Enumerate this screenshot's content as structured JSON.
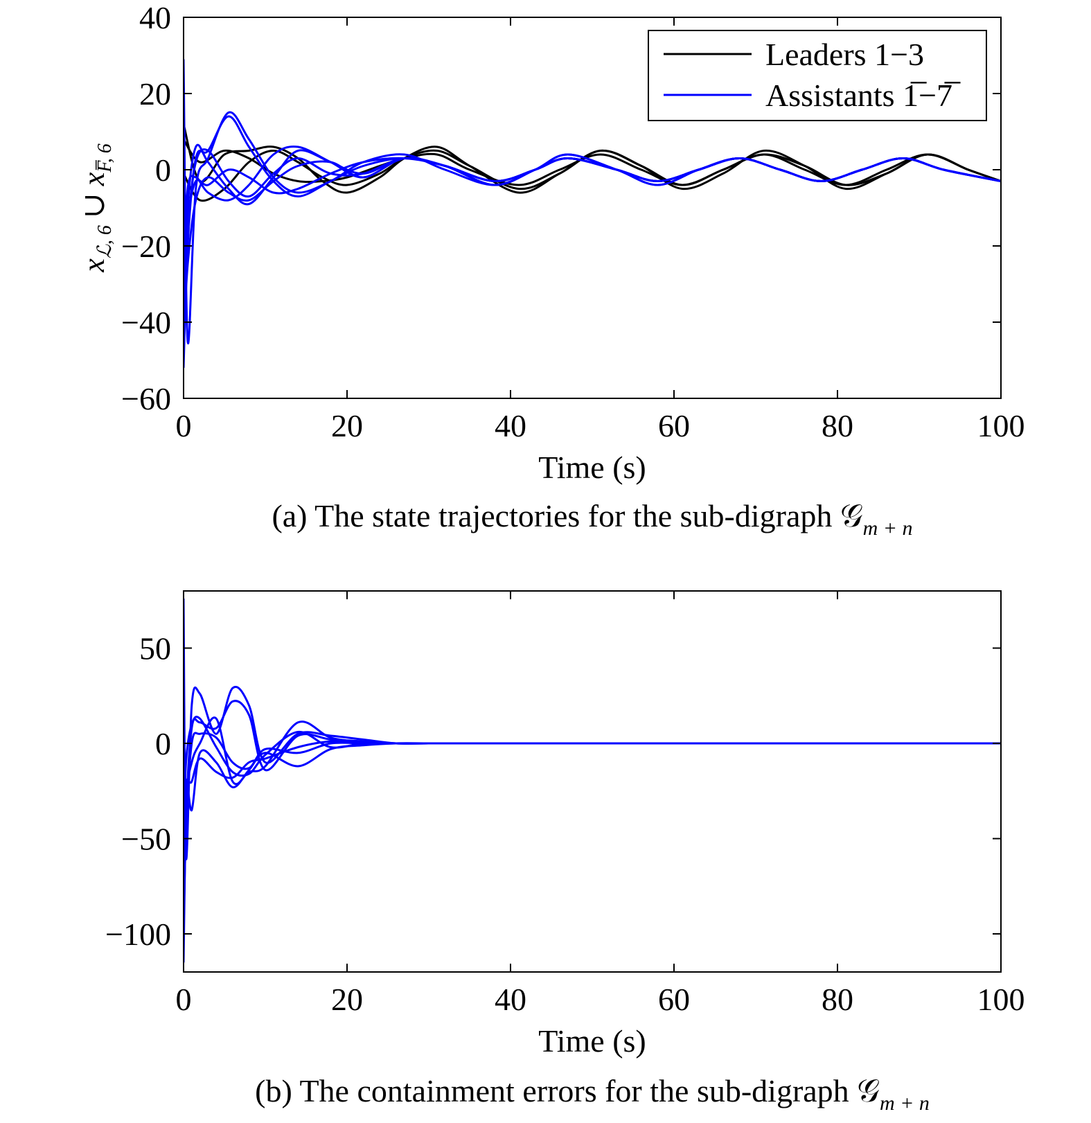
{
  "colors": {
    "leader": "#000000",
    "assistant": "#0000ff",
    "axis": "#000000",
    "background": "#ffffff"
  },
  "chart_data": [
    {
      "id": "a",
      "type": "line",
      "caption": "(a) The state trajectories for the sub-digraph 𝒢",
      "caption_sub": "m + n",
      "xlabel": "Time (s)",
      "ylabel": "x",
      "ylabel_parts": {
        "sub1": "ℒ, 6",
        "union": "∪",
        "x2": "x",
        "sub2": "F̅, 6"
      },
      "xlim": [
        0,
        100
      ],
      "ylim": [
        -60,
        40
      ],
      "xticks": [
        0,
        20,
        40,
        60,
        80,
        100
      ],
      "yticks": [
        -60,
        -40,
        -20,
        0,
        20,
        40
      ],
      "xtick_labels": [
        "0",
        "20",
        "40",
        "60",
        "80",
        "100"
      ],
      "ytick_labels": [
        "−60",
        "−40",
        "−20",
        "0",
        "20",
        "40"
      ],
      "grid": false,
      "legend_position": "top-right",
      "legend": [
        {
          "label": "Leaders 1−3",
          "color": "#000000"
        },
        {
          "label": "Assistants 1̅−7̅",
          "color": "#0000ff"
        }
      ],
      "series": [
        {
          "group": "Leaders 1−3",
          "color": "#000000",
          "x": [
            0,
            2,
            5,
            8,
            11,
            14,
            17,
            20,
            24,
            27,
            31,
            35,
            41,
            46,
            51,
            56,
            61,
            66,
            71,
            76,
            81,
            86,
            91,
            96,
            100
          ],
          "y": [
            12,
            -3,
            4,
            5,
            6,
            3,
            -3,
            -6,
            -2,
            3,
            6,
            1,
            -6,
            -1,
            5,
            1,
            -5,
            -1,
            5,
            1,
            -5,
            -1,
            4,
            0,
            -3
          ]
        },
        {
          "group": "Leaders 1−3",
          "color": "#000000",
          "x": [
            0,
            2,
            5,
            8,
            11,
            14,
            17,
            20,
            24,
            27,
            31,
            35,
            41,
            46,
            51,
            56,
            61,
            66,
            71,
            76,
            81,
            86,
            91,
            96,
            100
          ],
          "y": [
            -1,
            -8,
            -5,
            2,
            5,
            2,
            -2,
            -4,
            -1,
            3,
            5,
            1,
            -5,
            -1,
            5,
            1,
            -4,
            0,
            4,
            1,
            -4,
            -1,
            4,
            0,
            -3
          ]
        },
        {
          "group": "Leaders 1−3",
          "color": "#000000",
          "x": [
            0,
            2,
            5,
            8,
            11,
            14,
            17,
            20,
            24,
            27,
            31,
            35,
            41,
            46,
            51,
            56,
            61,
            66,
            71,
            76,
            81,
            86,
            91,
            96,
            100
          ],
          "y": [
            8,
            2,
            5,
            3,
            -1,
            -3,
            -3,
            -2,
            1,
            3,
            4,
            0,
            -4,
            0,
            4,
            0,
            -4,
            0,
            4,
            0,
            -4,
            0,
            4,
            0,
            -3
          ]
        },
        {
          "group": "Assistants 1̅−7̅",
          "color": "#0000ff",
          "x": [
            0,
            0.5,
            1.5,
            3,
            5.5,
            8,
            11,
            14,
            18,
            22,
            27,
            32,
            38,
            43,
            47,
            53,
            58,
            63,
            68,
            73,
            78,
            83,
            88,
            93,
            100
          ],
          "y": [
            29,
            -45,
            -5,
            3,
            15,
            8,
            -2,
            -6,
            -3,
            2,
            4,
            0,
            -4,
            0,
            4,
            0,
            -4,
            0,
            3,
            0,
            -3,
            0,
            3,
            0,
            -3
          ]
        },
        {
          "group": "Assistants 1̅−7̅",
          "color": "#0000ff",
          "x": [
            0,
            0.5,
            1.5,
            3,
            5.5,
            8,
            11,
            14,
            18,
            22,
            27,
            32,
            38,
            43,
            47,
            53,
            58,
            63,
            68,
            73,
            78,
            83,
            88,
            93,
            100
          ],
          "y": [
            -52,
            -20,
            3,
            5,
            14,
            6,
            -3,
            -7,
            -3,
            1,
            3,
            1,
            -4,
            0,
            4,
            0,
            -4,
            0,
            3,
            0,
            -3,
            0,
            3,
            0,
            -3
          ]
        },
        {
          "group": "Assistants 1̅−7̅",
          "color": "#0000ff",
          "x": [
            0,
            0.5,
            1.5,
            3,
            5.5,
            8,
            11,
            14,
            18,
            22,
            27,
            32,
            38,
            43,
            47,
            53,
            58,
            63,
            68,
            73,
            78,
            83,
            88,
            93,
            100
          ],
          "y": [
            -40,
            -10,
            6,
            2,
            -5,
            -9,
            -2,
            5,
            2,
            -1,
            3,
            1,
            -4,
            0,
            3,
            0,
            -3,
            0,
            3,
            0,
            -3,
            0,
            3,
            0,
            -3
          ]
        },
        {
          "group": "Assistants 1̅−7̅",
          "color": "#0000ff",
          "x": [
            0,
            0.5,
            1.5,
            3,
            5.5,
            8,
            11,
            14,
            18,
            22,
            27,
            32,
            38,
            43,
            47,
            53,
            58,
            63,
            68,
            73,
            78,
            83,
            88,
            93,
            100
          ],
          "y": [
            -30,
            -5,
            -2,
            -6,
            -8,
            -4,
            4,
            6,
            2,
            -2,
            3,
            1,
            -3,
            0,
            3,
            0,
            -3,
            0,
            3,
            0,
            -3,
            0,
            3,
            0,
            -3
          ]
        },
        {
          "group": "Assistants 1̅−7̅",
          "color": "#0000ff",
          "x": [
            0,
            0.5,
            1.5,
            3,
            5.5,
            8,
            11,
            14,
            18,
            22,
            27,
            32,
            38,
            43,
            47,
            53,
            58,
            63,
            68,
            73,
            78,
            83,
            88,
            93,
            100
          ],
          "y": [
            -20,
            -12,
            -3,
            -4,
            0,
            -2,
            -6,
            -5,
            -1,
            2,
            3,
            1,
            -3,
            0,
            3,
            0,
            -3,
            0,
            3,
            0,
            -3,
            0,
            3,
            0,
            -3
          ]
        },
        {
          "group": "Assistants 1̅−7̅",
          "color": "#0000ff",
          "x": [
            0,
            0.5,
            1.5,
            3,
            5.5,
            8,
            11,
            14,
            18,
            22,
            27,
            32,
            38,
            43,
            47,
            53,
            58,
            63,
            68,
            73,
            78,
            83,
            88,
            93,
            100
          ],
          "y": [
            -45,
            -25,
            -8,
            -2,
            -6,
            -8,
            -3,
            1,
            2,
            -2,
            3,
            1,
            -3,
            0,
            3,
            0,
            -3,
            0,
            3,
            0,
            -3,
            0,
            3,
            0,
            -3
          ]
        },
        {
          "group": "Assistants 1̅−7̅",
          "color": "#0000ff",
          "x": [
            0,
            0.5,
            1.5,
            3,
            5.5,
            8,
            11,
            14,
            18,
            22,
            27,
            32,
            38,
            43,
            47,
            53,
            58,
            63,
            68,
            73,
            78,
            83,
            88,
            93,
            100
          ],
          "y": [
            -35,
            -15,
            2,
            5,
            -3,
            -7,
            -1,
            3,
            -1,
            -1,
            3,
            1,
            -3,
            0,
            3,
            0,
            -3,
            0,
            3,
            0,
            -3,
            0,
            3,
            0,
            -3
          ]
        }
      ]
    },
    {
      "id": "b",
      "type": "line",
      "caption": "(b) The containment errors for the sub-digraph 𝒢",
      "caption_sub": "m + n",
      "xlabel": "Time (s)",
      "ylabel": "",
      "xlim": [
        0,
        100
      ],
      "ylim": [
        -120,
        80
      ],
      "xticks": [
        0,
        20,
        40,
        60,
        80,
        100
      ],
      "yticks": [
        -100,
        -50,
        0,
        50
      ],
      "xtick_labels": [
        "0",
        "20",
        "40",
        "60",
        "80",
        "100"
      ],
      "ytick_labels": [
        "−100",
        "−50",
        "0",
        "50"
      ],
      "grid": false,
      "series": [
        {
          "color": "#0000ff",
          "x": [
            0,
            0.3,
            1,
            2,
            4,
            6,
            8,
            10,
            14,
            18,
            22,
            26,
            30,
            35,
            40,
            100
          ],
          "y": [
            76,
            -60,
            20,
            26,
            5,
            29,
            20,
            -10,
            5,
            4,
            2,
            0,
            0,
            0,
            0,
            0
          ]
        },
        {
          "color": "#0000ff",
          "x": [
            0,
            0.3,
            1,
            2,
            4,
            6,
            8,
            10,
            14,
            18,
            22,
            26,
            30,
            35,
            40,
            100
          ],
          "y": [
            -115,
            -40,
            8,
            11,
            8,
            22,
            15,
            -14,
            4,
            2,
            1,
            0,
            0,
            0,
            0,
            0
          ]
        },
        {
          "color": "#0000ff",
          "x": [
            0,
            0.3,
            1,
            2,
            4,
            6,
            8,
            10,
            14,
            18,
            22,
            26,
            30,
            35,
            40,
            100
          ],
          "y": [
            -90,
            -30,
            -10,
            0,
            13,
            -20,
            -15,
            -12,
            11,
            3,
            1,
            0,
            0,
            0,
            0,
            0
          ]
        },
        {
          "color": "#0000ff",
          "x": [
            0,
            0.3,
            1,
            2,
            4,
            6,
            8,
            10,
            14,
            18,
            22,
            26,
            30,
            35,
            40,
            100
          ],
          "y": [
            -70,
            -20,
            -35,
            -5,
            -10,
            -23,
            -14,
            -5,
            -12,
            -3,
            -1,
            0,
            0,
            0,
            0,
            0
          ]
        },
        {
          "color": "#0000ff",
          "x": [
            0,
            0.3,
            1,
            2,
            4,
            6,
            8,
            10,
            14,
            18,
            22,
            26,
            30,
            35,
            40,
            100
          ],
          "y": [
            -50,
            -10,
            10,
            13,
            -2,
            -15,
            -16,
            -6,
            6,
            -2,
            0,
            0,
            0,
            0,
            0,
            0
          ]
        },
        {
          "color": "#0000ff",
          "x": [
            0,
            0.3,
            1,
            2,
            4,
            6,
            8,
            10,
            14,
            18,
            22,
            26,
            30,
            35,
            40,
            100
          ],
          "y": [
            -100,
            -45,
            0,
            5,
            3,
            -10,
            -13,
            -3,
            -5,
            0,
            0,
            0,
            0,
            0,
            0,
            0
          ]
        },
        {
          "color": "#0000ff",
          "x": [
            0,
            0.3,
            1,
            2,
            4,
            6,
            8,
            10,
            14,
            18,
            22,
            26,
            30,
            35,
            40,
            100
          ],
          "y": [
            -80,
            -25,
            -20,
            -8,
            -15,
            -18,
            -10,
            -8,
            -2,
            1,
            0,
            0,
            0,
            0,
            0,
            0
          ]
        }
      ]
    }
  ]
}
